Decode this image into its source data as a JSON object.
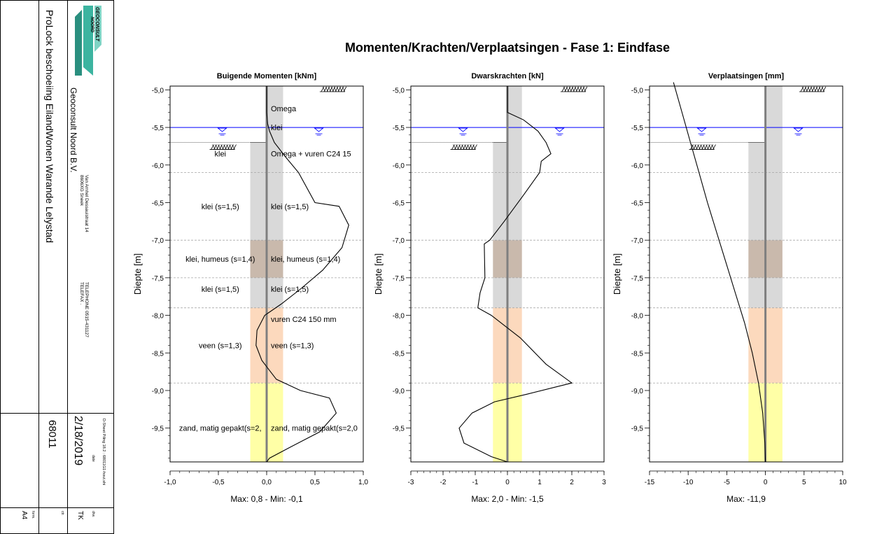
{
  "main_title": "Momenten/Krachten/Verplaatsingen - Fase 1: Eindfase",
  "title_block": {
    "project": "ProLock beschoeiing EilandWonen Warande Lelystad",
    "logo_line1": "GEOCONSULT",
    "logo_line2": "NOORD",
    "company": "Geoconsult Noord B.V.",
    "address1": "Van Arnhel Dessauistraat 14",
    "address2": "8606XG Sneek",
    "phone": "TELEPHONE 0515-431127",
    "fax": "TELEFAX     .",
    "software": "D-Sheet Piling 18.2 : 68011G1-hout.shi",
    "date_label": "date",
    "date": "2/18/2019",
    "number": "68011",
    "drw_label": "drw.",
    "drw": "TK",
    "ctr_label": "ctr.",
    "form_label": "form.",
    "form": "A4"
  },
  "chart_data": [
    {
      "type": "line",
      "title": "Buigende Momenten [kNm]",
      "ylabel": "Diepte [m]",
      "xlabel": "Max: 0,8 - Min: -0,1",
      "xlim": [
        -1.0,
        1.0
      ],
      "ylim": [
        -9.95,
        -4.95
      ],
      "xticks": [
        -1.0,
        -0.5,
        0.0,
        0.5,
        1.0
      ],
      "xtick_labels": [
        "-1,0",
        "-0,5",
        "0,0",
        "0,5",
        "1,0"
      ],
      "series": [
        {
          "points": [
            [
              0.0,
              -4.95
            ],
            [
              0.0,
              -5.3
            ],
            [
              0.01,
              -5.45
            ],
            [
              0.03,
              -5.55
            ],
            [
              0.08,
              -5.7
            ],
            [
              0.2,
              -5.9
            ],
            [
              0.33,
              -6.1
            ],
            [
              0.5,
              -6.5
            ],
            [
              0.75,
              -6.55
            ],
            [
              0.85,
              -6.8
            ],
            [
              0.78,
              -7.1
            ],
            [
              0.58,
              -7.4
            ],
            [
              0.35,
              -7.65
            ],
            [
              0.15,
              -7.85
            ],
            [
              -0.02,
              -8.0
            ],
            [
              -0.1,
              -8.2
            ],
            [
              -0.11,
              -8.4
            ],
            [
              -0.05,
              -8.6
            ],
            [
              0.1,
              -8.85
            ],
            [
              0.35,
              -9.0
            ],
            [
              0.65,
              -9.1
            ],
            [
              0.72,
              -9.3
            ],
            [
              0.55,
              -9.55
            ],
            [
              0.25,
              -9.75
            ],
            [
              0.03,
              -9.9
            ],
            [
              0.0,
              -9.95
            ]
          ]
        }
      ],
      "layer_labels_left": [
        {
          "text": "klei",
          "y": -5.85
        },
        {
          "text": "klei (s=1,5)",
          "y": -6.55
        },
        {
          "text": "klei, humeus (s=1,4)",
          "y": -7.25
        },
        {
          "text": "klei (s=1,5)",
          "y": -7.65
        },
        {
          "text": "veen (s=1,3)",
          "y": -8.4
        },
        {
          "text": "zand, matig gepakt(s=2,",
          "y": -9.5
        }
      ],
      "layer_labels_right": [
        {
          "text": "Omega",
          "y": -5.25
        },
        {
          "text": "klei",
          "y": -5.5
        },
        {
          "text": "Omega + vuren C24 15",
          "y": -5.85
        },
        {
          "text": "klei (s=1,5)",
          "y": -6.55
        },
        {
          "text": "klei, humeus (s=1,4)",
          "y": -7.25
        },
        {
          "text": "klei (s=1,5)",
          "y": -7.65
        },
        {
          "text": "vuren C24 150 mm",
          "y": -8.05
        },
        {
          "text": "veen (s=1,3)",
          "y": -8.4
        },
        {
          "text": "zand, matig gepakt(s=2,0",
          "y": -9.5
        }
      ]
    },
    {
      "type": "line",
      "title": "Dwarskrachten [kN]",
      "ylabel": "Diepte [m]",
      "xlabel": "Max: 2,0 - Min: -1,5",
      "xlim": [
        -3.0,
        3.0
      ],
      "ylim": [
        -9.95,
        -4.95
      ],
      "xticks": [
        -3,
        -2,
        -1,
        0,
        1,
        2,
        3
      ],
      "xtick_labels": [
        "-3",
        "-2",
        "-1",
        "0",
        "1",
        "2",
        "3"
      ],
      "series": [
        {
          "points": [
            [
              0.0,
              -4.95
            ],
            [
              0.0,
              -5.3
            ],
            [
              0.5,
              -5.4
            ],
            [
              0.95,
              -5.55
            ],
            [
              1.2,
              -5.7
            ],
            [
              1.35,
              -5.85
            ],
            [
              1.05,
              -5.95
            ],
            [
              1.0,
              -6.1
            ],
            [
              0.5,
              -6.4
            ],
            [
              -0.1,
              -6.75
            ],
            [
              -0.55,
              -7.0
            ],
            [
              -0.72,
              -7.05
            ],
            [
              -0.7,
              -7.5
            ],
            [
              -0.85,
              -7.7
            ],
            [
              -0.92,
              -7.9
            ],
            [
              -0.5,
              -8.0
            ],
            [
              0.4,
              -8.3
            ],
            [
              1.2,
              -8.65
            ],
            [
              2.0,
              -8.9
            ],
            [
              0.6,
              -9.05
            ],
            [
              -0.4,
              -9.15
            ],
            [
              -1.1,
              -9.3
            ],
            [
              -1.5,
              -9.5
            ],
            [
              -1.35,
              -9.7
            ],
            [
              -0.5,
              -9.88
            ],
            [
              0.0,
              -9.95
            ]
          ]
        }
      ]
    },
    {
      "type": "line",
      "title": "Verplaatsingen [mm]",
      "ylabel": "Diepte [m]",
      "xlabel": "Max: -11,9",
      "xlim": [
        -15,
        10
      ],
      "ylim": [
        -9.95,
        -4.95
      ],
      "xticks": [
        -15,
        -10,
        -5,
        0,
        5,
        10
      ],
      "xtick_labels": [
        "-15",
        "-10",
        "-5",
        "0",
        "5",
        "10"
      ],
      "series": [
        {
          "points": [
            [
              -11.9,
              -4.9
            ],
            [
              -10.8,
              -5.3
            ],
            [
              -9.7,
              -5.7
            ],
            [
              -8.6,
              -6.1
            ],
            [
              -7.5,
              -6.5
            ],
            [
              -6.3,
              -6.9
            ],
            [
              -5.1,
              -7.3
            ],
            [
              -3.9,
              -7.7
            ],
            [
              -2.7,
              -8.1
            ],
            [
              -1.7,
              -8.5
            ],
            [
              -0.9,
              -8.9
            ],
            [
              -0.35,
              -9.3
            ],
            [
              -0.08,
              -9.7
            ],
            [
              0.0,
              -9.95
            ]
          ]
        }
      ]
    }
  ],
  "common": {
    "yticks": [
      -5.0,
      -5.5,
      -6.0,
      -6.5,
      -7.0,
      -7.5,
      -8.0,
      -8.5,
      -9.0,
      -9.5
    ],
    "ytick_labels": [
      "-5,0",
      "-5,5",
      "-6,0",
      "-6,5",
      "-7,0",
      "-7,5",
      "-8,0",
      "-8,5",
      "-9,0",
      "-9,5"
    ],
    "water_level": -5.5,
    "ground_level_right": -4.95,
    "ground_level_left": -5.7,
    "layer_boundaries": [
      -6.1,
      -7.0,
      -7.5,
      -7.9,
      -8.9
    ],
    "soil_layers": [
      {
        "top": -5.7,
        "bottom": -7.0,
        "color": "#d9d9d9"
      },
      {
        "top": -7.0,
        "bottom": -7.5,
        "color": "#c9b9ac"
      },
      {
        "top": -7.5,
        "bottom": -7.9,
        "color": "#d9d9d9"
      },
      {
        "top": -7.9,
        "bottom": -8.9,
        "color": "#fcd9bd"
      },
      {
        "top": -8.9,
        "bottom": -9.95,
        "color": "#ffffa6"
      }
    ],
    "colors": {
      "water": "#0000ff",
      "wall": "#7f7f7f",
      "curve": "#000000",
      "boundary": "#a6a6a6"
    }
  }
}
